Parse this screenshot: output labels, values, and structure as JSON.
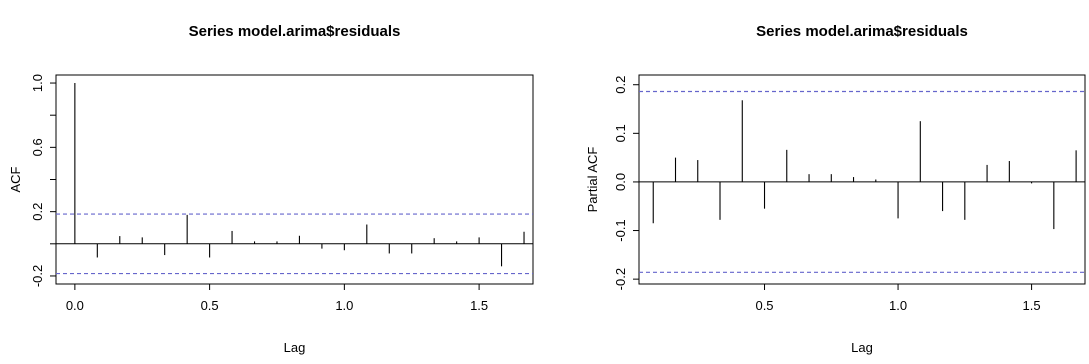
{
  "chart_data": [
    {
      "type": "bar",
      "title": "Series  model.arima$residuals",
      "xlabel": "Lag",
      "ylabel": "ACF",
      "xlim": [
        -0.07,
        1.7
      ],
      "ylim": [
        -0.25,
        1.05
      ],
      "xticks": [
        0.0,
        0.5,
        1.0,
        1.5
      ],
      "xtick_labels": [
        "0.0",
        "0.5",
        "1.0",
        "1.5"
      ],
      "yticks": [
        -0.2,
        0.2,
        0.6,
        1.0
      ],
      "ytick_labels": [
        "-0.2",
        "0.2",
        "0.6",
        "1.0"
      ],
      "y_minor_ticks": [
        0.0,
        0.4,
        0.8
      ],
      "ci": 0.185,
      "ci_color": "#6666cc",
      "lags": [
        0.0,
        0.0833,
        0.1667,
        0.25,
        0.3333,
        0.4167,
        0.5,
        0.5833,
        0.6667,
        0.75,
        0.8333,
        0.9167,
        1.0,
        1.0833,
        1.1667,
        1.25,
        1.3333,
        1.4167,
        1.5,
        1.5833,
        1.6667
      ],
      "values": [
        1.0,
        -0.085,
        0.048,
        0.04,
        -0.07,
        0.18,
        -0.085,
        0.08,
        0.015,
        0.015,
        0.05,
        -0.03,
        -0.04,
        0.12,
        -0.06,
        -0.06,
        0.035,
        0.015,
        0.04,
        -0.14,
        0.075
      ]
    },
    {
      "type": "bar",
      "title": "Series  model.arima$residuals",
      "xlabel": "Lag",
      "ylabel": "Partial ACF",
      "xlim": [
        0.03,
        1.7
      ],
      "ylim": [
        -0.21,
        0.22
      ],
      "xticks": [
        0.5,
        1.0,
        1.5
      ],
      "xtick_labels": [
        "0.5",
        "1.0",
        "1.5"
      ],
      "yticks": [
        -0.2,
        -0.1,
        0.0,
        0.1,
        0.2
      ],
      "ytick_labels": [
        "-0.2",
        "-0.1",
        "0.0",
        "0.1",
        "0.2"
      ],
      "y_minor_ticks": [],
      "ci": 0.186,
      "ci_color": "#6666cc",
      "lags": [
        0.0833,
        0.1667,
        0.25,
        0.3333,
        0.4167,
        0.5,
        0.5833,
        0.6667,
        0.75,
        0.8333,
        0.9167,
        1.0,
        1.0833,
        1.1667,
        1.25,
        1.3333,
        1.4167,
        1.5,
        1.5833,
        1.6667
      ],
      "values": [
        -0.085,
        0.05,
        0.045,
        -0.078,
        0.168,
        -0.055,
        0.066,
        0.016,
        0.016,
        0.01,
        0.005,
        -0.075,
        0.125,
        -0.06,
        -0.078,
        0.035,
        0.043,
        -0.003,
        -0.097,
        0.065
      ]
    }
  ]
}
